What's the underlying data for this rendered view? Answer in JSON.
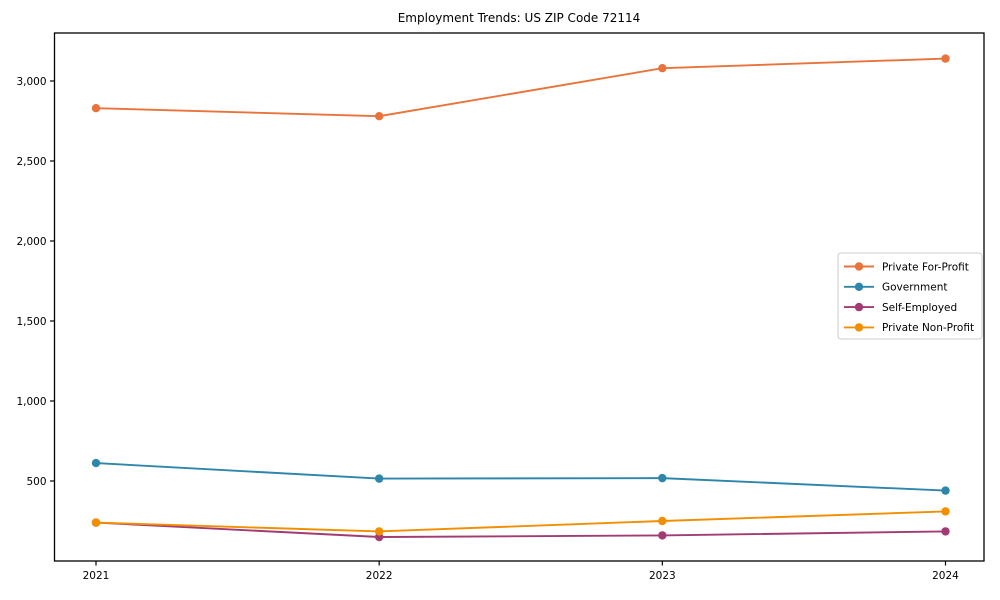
{
  "chart_data": {
    "type": "line",
    "title": "Employment Trends: US ZIP Code 72114",
    "xlabel": "",
    "ylabel": "",
    "categories": [
      "2021",
      "2022",
      "2023",
      "2024"
    ],
    "series": [
      {
        "name": "Private For-Profit",
        "color": "#E8743B",
        "values": [
          2830,
          2780,
          3080,
          3140
        ]
      },
      {
        "name": "Government",
        "color": "#2E86AB",
        "values": [
          612,
          515,
          518,
          440
        ]
      },
      {
        "name": "Self-Employed",
        "color": "#A23B72",
        "values": [
          240,
          150,
          160,
          185
        ]
      },
      {
        "name": "Private Non-Profit",
        "color": "#F18F01",
        "values": [
          240,
          185,
          250,
          310
        ]
      }
    ],
    "ylim": [
      0,
      3300
    ],
    "yticks": [
      {
        "value": 500,
        "label": "500"
      },
      {
        "value": 1000,
        "label": "1,000"
      },
      {
        "value": 1500,
        "label": "1,500"
      },
      {
        "value": 2000,
        "label": "2,000"
      },
      {
        "value": 2500,
        "label": "2,500"
      },
      {
        "value": 3000,
        "label": "3,000"
      }
    ],
    "grid": false,
    "legend_position": "center right",
    "axis_color": "#000000",
    "legend_border_color": "#cccccc",
    "background_color": "#ffffff"
  }
}
